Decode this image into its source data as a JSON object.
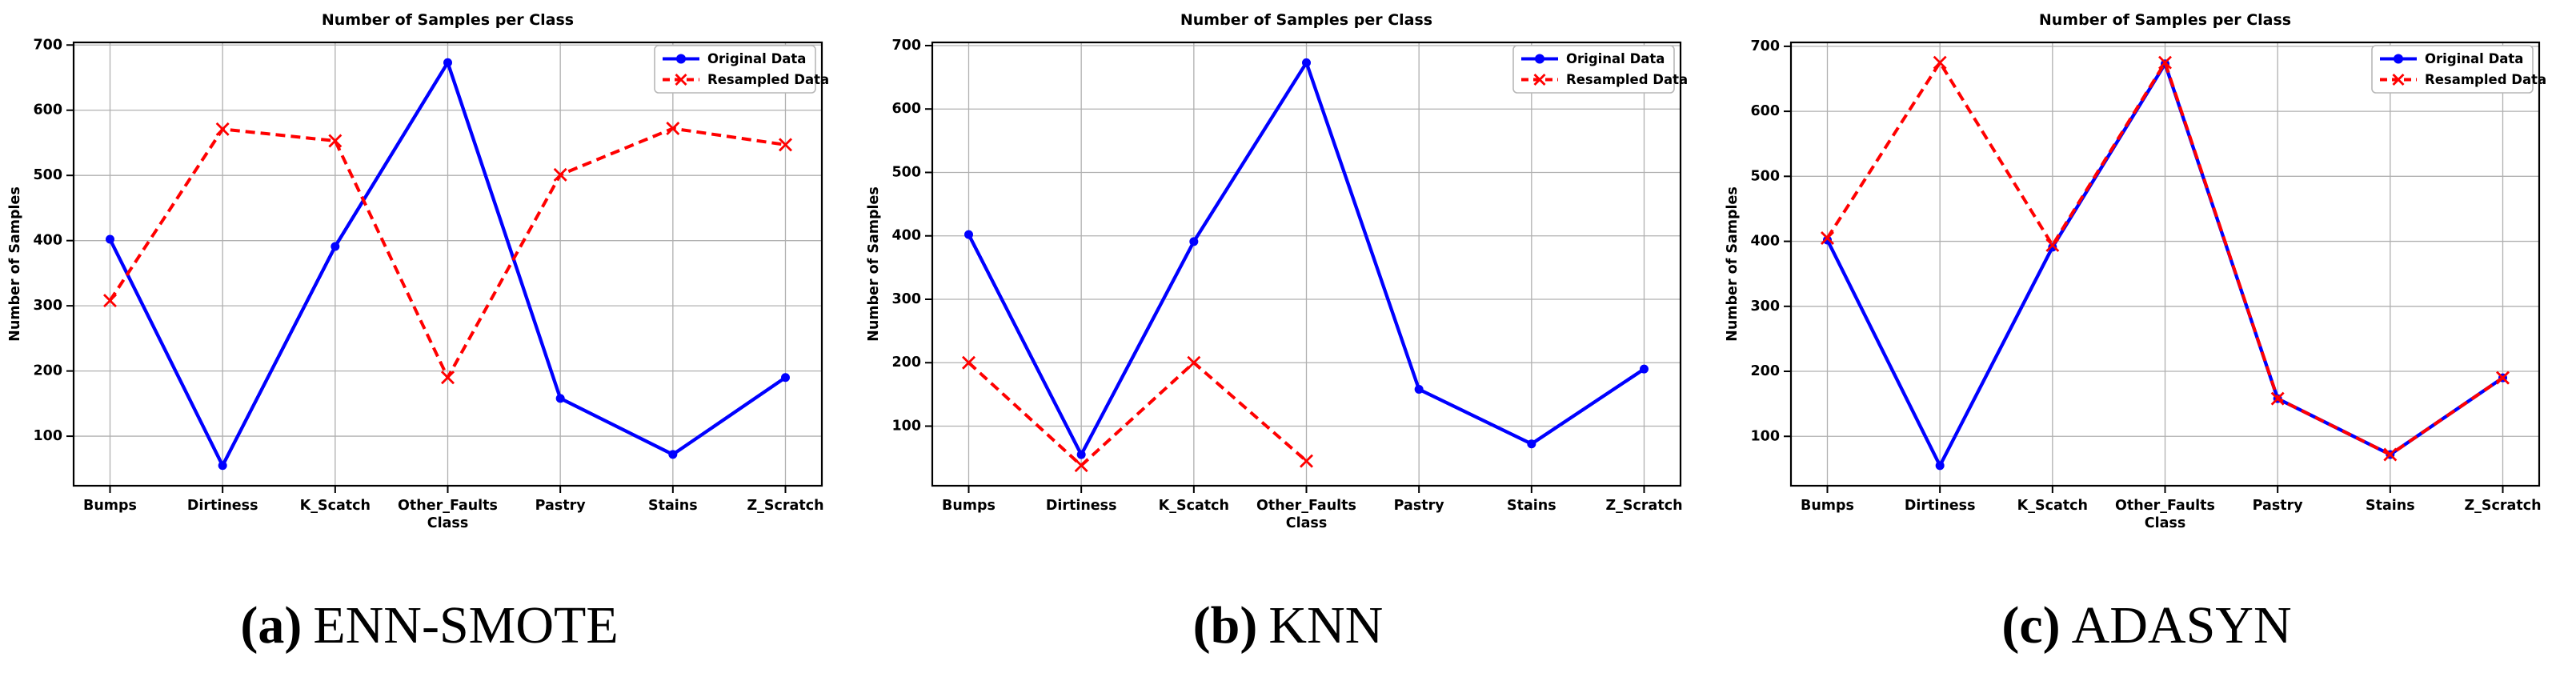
{
  "style": {
    "background": "#ffffff",
    "grid_color": "#b0b0b0",
    "axis_color": "#000000",
    "legend_border": "#b7b7b7",
    "original_color": "#0000ff",
    "resampled_color": "#ff0000"
  },
  "chart_data": [
    {
      "id": "a",
      "type": "line",
      "title": "Number of Samples per Class",
      "xlabel": "Class",
      "ylabel": "Number of Samples",
      "categories": [
        "Bumps",
        "Dirtiness",
        "K_Scatch",
        "Other_Faults",
        "Pastry",
        "Stains",
        "Z_Scratch"
      ],
      "yticks": [
        100,
        200,
        300,
        400,
        500,
        600,
        700
      ],
      "ylim": [
        24,
        704
      ],
      "grid": true,
      "legend_position": "upper right",
      "caption": {
        "label": "(a)",
        "method": "ENN-SMOTE"
      },
      "series": [
        {
          "name": "Original Data",
          "color": "#0000ff",
          "line_style": "solid",
          "marker": "circle",
          "values": [
            402,
            55,
            391,
            673,
            158,
            72,
            190
          ]
        },
        {
          "name": "Resampled Data",
          "color": "#ff0000",
          "line_style": "dashed",
          "marker": "x",
          "values": [
            308,
            571,
            553,
            190,
            501,
            572,
            547
          ]
        }
      ]
    },
    {
      "id": "b",
      "type": "line",
      "title": "Number of Samples per Class",
      "xlabel": "Class",
      "ylabel": "Number of Samples",
      "categories": [
        "Bumps",
        "Dirtiness",
        "K_Scatch",
        "Other_Faults",
        "Pastry",
        "Stains",
        "Z_Scratch"
      ],
      "yticks": [
        100,
        200,
        300,
        400,
        500,
        600,
        700
      ],
      "ylim": [
        6,
        705
      ],
      "grid": true,
      "legend_position": "upper right",
      "caption": {
        "label": "(b)",
        "method": "KNN"
      },
      "series": [
        {
          "name": "Original Data",
          "color": "#0000ff",
          "line_style": "solid",
          "marker": "circle",
          "values": [
            402,
            55,
            391,
            673,
            158,
            72,
            190
          ]
        },
        {
          "name": "Resampled Data",
          "color": "#ff0000",
          "line_style": "dashed",
          "marker": "x",
          "values": [
            200,
            38,
            200,
            45,
            null,
            null,
            null
          ]
        }
      ]
    },
    {
      "id": "c",
      "type": "line",
      "title": "Number of Samples per Class",
      "xlabel": "Class",
      "ylabel": "Number of Samples",
      "categories": [
        "Bumps",
        "Dirtiness",
        "K_Scatch",
        "Other_Faults",
        "Pastry",
        "Stains",
        "Z_Scratch"
      ],
      "yticks": [
        100,
        200,
        300,
        400,
        500,
        600,
        700
      ],
      "ylim": [
        24,
        706
      ],
      "grid": true,
      "legend_position": "upper right",
      "caption": {
        "label": "(c)",
        "method": "ADASYN"
      },
      "series": [
        {
          "name": "Original Data",
          "color": "#0000ff",
          "line_style": "solid",
          "marker": "circle",
          "values": [
            402,
            55,
            391,
            673,
            158,
            72,
            190
          ]
        },
        {
          "name": "Resampled Data",
          "color": "#ff0000",
          "line_style": "dashed",
          "marker": "x",
          "values": [
            405,
            675,
            394,
            675,
            158,
            72,
            190
          ]
        }
      ]
    }
  ]
}
